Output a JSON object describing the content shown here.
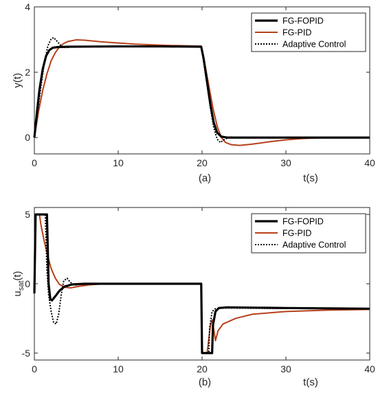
{
  "chart_data": [
    {
      "type": "line",
      "panel_label": "(a)",
      "xlabel": "t(s)",
      "ylabel": "y(t)",
      "xlim": [
        0,
        40
      ],
      "ylim": [
        -0.5,
        4
      ],
      "xticks": [
        0,
        10,
        20,
        30,
        40
      ],
      "yticks": [
        0,
        2,
        4
      ],
      "grid": false,
      "legend_position": "top-right",
      "series": [
        {
          "name": "FG-FOPID",
          "color": "#000000",
          "style": "solid-thick",
          "points": [
            [
              0,
              0
            ],
            [
              0.3,
              0.75
            ],
            [
              0.6,
              1.45
            ],
            [
              1.0,
              2.1
            ],
            [
              1.4,
              2.5
            ],
            [
              1.8,
              2.68
            ],
            [
              2.2,
              2.75
            ],
            [
              2.8,
              2.77
            ],
            [
              4,
              2.78
            ],
            [
              10,
              2.79
            ],
            [
              15,
              2.79
            ],
            [
              19.9,
              2.78
            ],
            [
              20.2,
              2.4
            ],
            [
              20.6,
              1.7
            ],
            [
              21.0,
              1.0
            ],
            [
              21.4,
              0.45
            ],
            [
              21.8,
              0.15
            ],
            [
              22.3,
              0.03
            ],
            [
              23,
              0.0
            ],
            [
              30,
              0.0
            ],
            [
              40,
              0.0
            ]
          ]
        },
        {
          "name": "FG-PID",
          "color": "#b5401a",
          "style": "solid",
          "points": [
            [
              0,
              0
            ],
            [
              0.5,
              0.8
            ],
            [
              1,
              1.45
            ],
            [
              1.5,
              1.95
            ],
            [
              2,
              2.35
            ],
            [
              2.5,
              2.6
            ],
            [
              3,
              2.78
            ],
            [
              3.5,
              2.88
            ],
            [
              4,
              2.94
            ],
            [
              5,
              2.99
            ],
            [
              6,
              2.98
            ],
            [
              8,
              2.93
            ],
            [
              12,
              2.86
            ],
            [
              16,
              2.82
            ],
            [
              19.9,
              2.8
            ],
            [
              20.3,
              2.3
            ],
            [
              20.8,
              1.6
            ],
            [
              21.3,
              0.9
            ],
            [
              21.8,
              0.35
            ],
            [
              22.3,
              0.0
            ],
            [
              22.8,
              -0.15
            ],
            [
              23.5,
              -0.22
            ],
            [
              24.5,
              -0.24
            ],
            [
              26,
              -0.2
            ],
            [
              28,
              -0.13
            ],
            [
              30,
              -0.07
            ],
            [
              32,
              -0.03
            ],
            [
              35,
              0.0
            ],
            [
              40,
              0.0
            ]
          ]
        },
        {
          "name": "Adaptive Control",
          "color": "#000000",
          "style": "dotted",
          "points": [
            [
              0,
              0
            ],
            [
              0.4,
              0.8
            ],
            [
              0.8,
              1.6
            ],
            [
              1.2,
              2.3
            ],
            [
              1.6,
              2.8
            ],
            [
              2.0,
              3.02
            ],
            [
              2.3,
              3.06
            ],
            [
              2.7,
              2.95
            ],
            [
              3.2,
              2.8
            ],
            [
              3.8,
              2.75
            ],
            [
              4.5,
              2.78
            ],
            [
              10,
              2.79
            ],
            [
              19.9,
              2.78
            ],
            [
              20.2,
              2.3
            ],
            [
              20.6,
              1.6
            ],
            [
              21.0,
              0.9
            ],
            [
              21.4,
              0.3
            ],
            [
              21.8,
              -0.05
            ],
            [
              22.2,
              -0.15
            ],
            [
              22.7,
              -0.05
            ],
            [
              23.3,
              0.02
            ],
            [
              24,
              0.0
            ],
            [
              40,
              0.0
            ]
          ]
        }
      ]
    },
    {
      "type": "line",
      "panel_label": "(b)",
      "xlabel": "t(s)",
      "ylabel": "u",
      "ylabel_subscript": "sat",
      "ylabel_suffix": "(t)",
      "xlim": [
        0,
        40
      ],
      "ylim": [
        -5.5,
        5.5
      ],
      "xticks": [
        0,
        10,
        20,
        30,
        40
      ],
      "yticks": [
        -5,
        0,
        5
      ],
      "grid": false,
      "legend_position": "top-right",
      "series": [
        {
          "name": "FG-FOPID",
          "color": "#000000",
          "style": "solid-thick",
          "points": [
            [
              0,
              -0.7
            ],
            [
              0.15,
              5
            ],
            [
              1.5,
              5
            ],
            [
              1.6,
              2.5
            ],
            [
              1.7,
              0
            ],
            [
              1.9,
              -1.1
            ],
            [
              2.1,
              -1.2
            ],
            [
              2.5,
              -0.9
            ],
            [
              3,
              -0.5
            ],
            [
              3.6,
              -0.2
            ],
            [
              4.5,
              -0.05
            ],
            [
              6,
              0
            ],
            [
              19.9,
              0
            ],
            [
              20.0,
              -5
            ],
            [
              21.2,
              -5
            ],
            [
              21.3,
              -3
            ],
            [
              21.6,
              -2.0
            ],
            [
              22.0,
              -1.75
            ],
            [
              23,
              -1.7
            ],
            [
              30,
              -1.75
            ],
            [
              40,
              -1.8
            ]
          ]
        },
        {
          "name": "FG-PID",
          "color": "#b5401a",
          "style": "solid",
          "points": [
            [
              0,
              5
            ],
            [
              0.6,
              5
            ],
            [
              0.8,
              4.2
            ],
            [
              1.2,
              3.0
            ],
            [
              1.6,
              2.0
            ],
            [
              2.0,
              1.1
            ],
            [
              2.5,
              0.4
            ],
            [
              3.0,
              -0.05
            ],
            [
              3.6,
              -0.25
            ],
            [
              4.3,
              -0.3
            ],
            [
              5.2,
              -0.2
            ],
            [
              6.5,
              -0.08
            ],
            [
              8,
              -0.02
            ],
            [
              10,
              0
            ],
            [
              19.9,
              0
            ],
            [
              20.0,
              -5
            ],
            [
              20.6,
              -5
            ],
            [
              20.8,
              -4.0
            ],
            [
              21.0,
              -3.0
            ],
            [
              21.2,
              -2.6
            ],
            [
              21.4,
              -3.3
            ],
            [
              21.6,
              -4.1
            ],
            [
              21.9,
              -3.4
            ],
            [
              22.5,
              -2.9
            ],
            [
              24,
              -2.5
            ],
            [
              26,
              -2.2
            ],
            [
              30,
              -2.0
            ],
            [
              35,
              -1.9
            ],
            [
              40,
              -1.85
            ]
          ]
        },
        {
          "name": "Adaptive Control",
          "color": "#000000",
          "style": "dotted",
          "points": [
            [
              0,
              5
            ],
            [
              1.3,
              5
            ],
            [
              1.5,
              1.0
            ],
            [
              1.7,
              -0.8
            ],
            [
              2.0,
              -2.0
            ],
            [
              2.3,
              -2.8
            ],
            [
              2.6,
              -2.9
            ],
            [
              2.9,
              -2.2
            ],
            [
              3.2,
              -0.8
            ],
            [
              3.5,
              0.2
            ],
            [
              3.9,
              0.4
            ],
            [
              4.3,
              0.1
            ],
            [
              4.8,
              -0.1
            ],
            [
              5.5,
              -0.05
            ],
            [
              7,
              0
            ],
            [
              19.9,
              0
            ],
            [
              20.0,
              -5
            ],
            [
              20.8,
              -5
            ],
            [
              20.9,
              -3.2
            ],
            [
              21.2,
              -2.0
            ],
            [
              21.6,
              -1.8
            ],
            [
              22.5,
              -1.75
            ],
            [
              30,
              -1.78
            ],
            [
              40,
              -1.8
            ]
          ]
        }
      ]
    }
  ]
}
